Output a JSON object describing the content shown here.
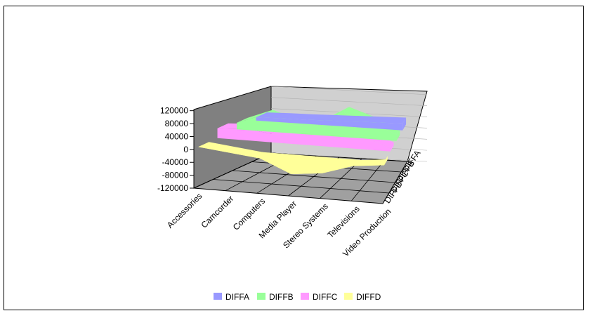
{
  "chart_data": {
    "type": "area",
    "variant": "3d-area",
    "categories": [
      "Accessories",
      "Camcorder",
      "Computers",
      "Media Player",
      "Stereo Systems",
      "Televisions",
      "Video Production"
    ],
    "series": [
      {
        "name": "DIFFA",
        "color": "#9999ff",
        "values": [
          10000,
          12000,
          13000,
          15000,
          17000,
          19000,
          21000
        ]
      },
      {
        "name": "DIFFB",
        "color": "#99ff99",
        "values": [
          20000,
          50000,
          25000,
          30000,
          75000,
          50000,
          20000
        ]
      },
      {
        "name": "DIFFC",
        "color": "#ff99ff",
        "values": [
          30000,
          35000,
          25000,
          50000,
          85000,
          40000,
          10000
        ]
      },
      {
        "name": "DIFFD",
        "color": "#ffff99",
        "values": [
          0,
          -10000,
          -20000,
          -60000,
          -50000,
          -20000,
          -10000
        ]
      }
    ],
    "y_ticks": [
      "120000",
      "80000",
      "40000",
      "0",
      "-40000",
      "-80000",
      "-120000"
    ],
    "ylim": [
      -120000,
      120000
    ],
    "grid": true,
    "legend_position": "bottom"
  }
}
